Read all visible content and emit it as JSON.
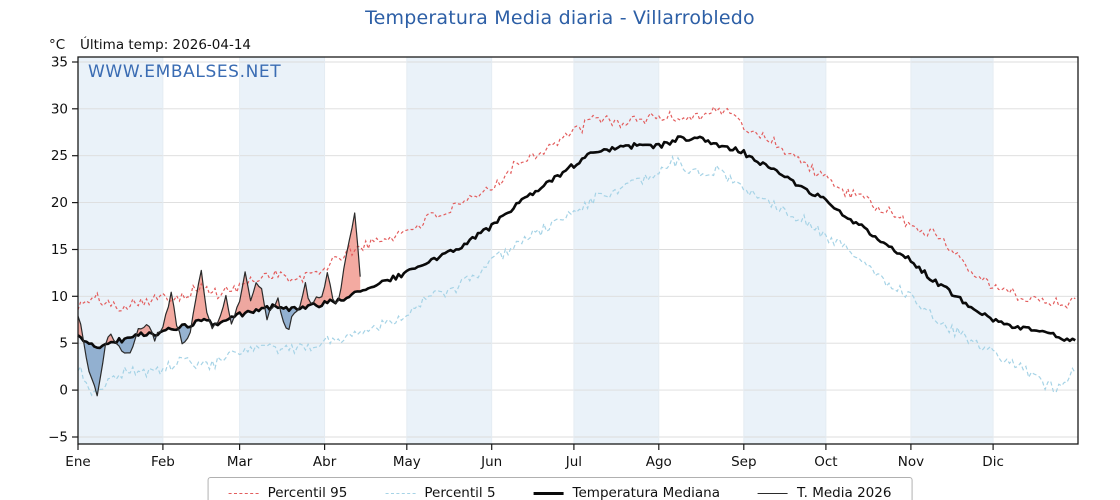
{
  "header": {
    "title": "Temperatura Media diaria - Villarrobledo",
    "units_label": "°C",
    "last_temp_label": "Última temp: 2026-04-14",
    "watermark": "WWW.EMBALSES.NET"
  },
  "colors": {
    "title": "#2d5fa6",
    "watermark": "#3a6cb3",
    "axis": "#1a1a1a",
    "grid": "#dcdcdc",
    "band": "#eaf2f9"
  },
  "chart_data": {
    "type": "line",
    "title": "Temperatura Media diaria - Villarrobledo",
    "xlabel": "",
    "ylabel": "°C",
    "x_tick_labels": [
      "Ene",
      "Feb",
      "Mar",
      "Abr",
      "May",
      "Jun",
      "Jul",
      "Ago",
      "Sep",
      "Oct",
      "Nov",
      "Dic"
    ],
    "month_days": [
      31,
      28,
      31,
      30,
      31,
      30,
      31,
      31,
      30,
      31,
      30,
      31
    ],
    "ylim": [
      -5.75,
      35.53
    ],
    "yticks": [
      -5,
      0,
      5,
      10,
      15,
      20,
      25,
      30,
      35
    ],
    "grid": true,
    "legend_position": "bottom",
    "band_color": "#eaf2f9",
    "series": [
      {
        "name": "Percentil 95",
        "color": "#e35d5d",
        "style": "dashed",
        "width": 1.2,
        "jitter": 0.6,
        "anchors": [
          [
            1,
            9.0
          ],
          [
            8,
            9.8
          ],
          [
            15,
            8.8
          ],
          [
            22,
            9.5
          ],
          [
            32,
            9.8
          ],
          [
            40,
            10.2
          ],
          [
            46,
            11.0
          ],
          [
            52,
            10.2
          ],
          [
            60,
            11.0
          ],
          [
            68,
            12.2
          ],
          [
            74,
            12.5
          ],
          [
            80,
            11.5
          ],
          [
            91,
            13.0
          ],
          [
            98,
            14.5
          ],
          [
            104,
            15.3
          ],
          [
            112,
            16.0
          ],
          [
            121,
            17.0
          ],
          [
            130,
            18.5
          ],
          [
            140,
            19.5
          ],
          [
            152,
            21.5
          ],
          [
            160,
            24.0
          ],
          [
            170,
            25.5
          ],
          [
            182,
            27.5
          ],
          [
            190,
            29.0
          ],
          [
            200,
            28.5
          ],
          [
            213,
            29.2
          ],
          [
            222,
            29.0
          ],
          [
            232,
            29.7
          ],
          [
            238,
            29.9
          ],
          [
            244,
            28.0
          ],
          [
            252,
            27.0
          ],
          [
            260,
            25.5
          ],
          [
            274,
            22.5
          ],
          [
            282,
            21.0
          ],
          [
            290,
            20.0
          ],
          [
            300,
            18.5
          ],
          [
            305,
            17.5
          ],
          [
            315,
            16.5
          ],
          [
            325,
            13.5
          ],
          [
            335,
            11.0
          ],
          [
            345,
            10.0
          ],
          [
            355,
            9.5
          ],
          [
            365,
            9.3
          ]
        ]
      },
      {
        "name": "Percentil 5",
        "color": "#a6d3e6",
        "style": "dashed",
        "width": 1.2,
        "jitter": 0.6,
        "anchors": [
          [
            1,
            2.5
          ],
          [
            6,
            -0.3
          ],
          [
            12,
            1.0
          ],
          [
            20,
            2.2
          ],
          [
            28,
            1.8
          ],
          [
            32,
            2.2
          ],
          [
            40,
            3.2
          ],
          [
            48,
            2.5
          ],
          [
            60,
            4.0
          ],
          [
            70,
            4.5
          ],
          [
            80,
            4.2
          ],
          [
            91,
            5.2
          ],
          [
            100,
            5.8
          ],
          [
            104,
            6.2
          ],
          [
            112,
            7.0
          ],
          [
            121,
            8.2
          ],
          [
            130,
            10.0
          ],
          [
            140,
            11.0
          ],
          [
            152,
            13.5
          ],
          [
            160,
            15.5
          ],
          [
            170,
            17.0
          ],
          [
            182,
            19.0
          ],
          [
            190,
            20.5
          ],
          [
            200,
            21.5
          ],
          [
            213,
            23.0
          ],
          [
            218,
            24.6
          ],
          [
            226,
            23.0
          ],
          [
            234,
            23.5
          ],
          [
            244,
            21.5
          ],
          [
            254,
            20.0
          ],
          [
            264,
            18.5
          ],
          [
            274,
            16.5
          ],
          [
            284,
            14.5
          ],
          [
            294,
            12.0
          ],
          [
            305,
            10.0
          ],
          [
            315,
            7.5
          ],
          [
            325,
            5.5
          ],
          [
            335,
            4.0
          ],
          [
            345,
            2.5
          ],
          [
            352,
            0.8
          ],
          [
            358,
            0.3
          ],
          [
            365,
            2.2
          ]
        ]
      },
      {
        "name": "Temperatura Mediana",
        "color": "#0a0a0a",
        "style": "solid",
        "width": 2.6,
        "jitter": 0.28,
        "anchors": [
          [
            1,
            5.6
          ],
          [
            8,
            4.6
          ],
          [
            15,
            5.2
          ],
          [
            22,
            5.8
          ],
          [
            32,
            6.2
          ],
          [
            40,
            6.8
          ],
          [
            46,
            7.4
          ],
          [
            52,
            7.0
          ],
          [
            60,
            8.0
          ],
          [
            68,
            8.6
          ],
          [
            74,
            9.0
          ],
          [
            80,
            8.6
          ],
          [
            91,
            9.2
          ],
          [
            98,
            9.8
          ],
          [
            104,
            10.6
          ],
          [
            112,
            11.5
          ],
          [
            121,
            12.5
          ],
          [
            130,
            13.8
          ],
          [
            140,
            15.2
          ],
          [
            152,
            17.5
          ],
          [
            160,
            19.5
          ],
          [
            170,
            21.5
          ],
          [
            182,
            24.0
          ],
          [
            190,
            25.5
          ],
          [
            200,
            25.8
          ],
          [
            207,
            26.3
          ],
          [
            213,
            26.0
          ],
          [
            220,
            26.8
          ],
          [
            228,
            26.9
          ],
          [
            235,
            26.2
          ],
          [
            244,
            25.3
          ],
          [
            252,
            24.0
          ],
          [
            260,
            22.5
          ],
          [
            274,
            20.2
          ],
          [
            284,
            18.0
          ],
          [
            294,
            16.0
          ],
          [
            305,
            13.8
          ],
          [
            312,
            12.0
          ],
          [
            320,
            10.3
          ],
          [
            328,
            8.8
          ],
          [
            335,
            7.6
          ],
          [
            345,
            6.6
          ],
          [
            355,
            6.0
          ],
          [
            365,
            5.2
          ]
        ]
      },
      {
        "name": "T. Media 2026",
        "color": "#2b2b2b",
        "style": "solid",
        "width": 1.2,
        "jitter": 0.35,
        "end_day": 104,
        "fill_above_color": "#ef8d82",
        "fill_below_color": "#749ac2",
        "fill_opacity": 0.75,
        "anchors": [
          [
            1,
            8.0
          ],
          [
            3,
            5.5
          ],
          [
            5,
            2.0
          ],
          [
            8,
            -0.5
          ],
          [
            10,
            3.0
          ],
          [
            12,
            6.0
          ],
          [
            14,
            5.5
          ],
          [
            17,
            4.0
          ],
          [
            20,
            3.8
          ],
          [
            23,
            6.5
          ],
          [
            26,
            7.0
          ],
          [
            29,
            5.5
          ],
          [
            32,
            6.8
          ],
          [
            35,
            10.3
          ],
          [
            37,
            7.0
          ],
          [
            39,
            4.8
          ],
          [
            42,
            6.0
          ],
          [
            44,
            9.5
          ],
          [
            46,
            13.0
          ],
          [
            48,
            8.0
          ],
          [
            50,
            6.5
          ],
          [
            53,
            8.0
          ],
          [
            55,
            9.8
          ],
          [
            57,
            7.2
          ],
          [
            60,
            9.2
          ],
          [
            62,
            12.4
          ],
          [
            64,
            9.5
          ],
          [
            66,
            11.8
          ],
          [
            68,
            10.5
          ],
          [
            70,
            7.8
          ],
          [
            72,
            9.0
          ],
          [
            74,
            9.8
          ],
          [
            76,
            7.0
          ],
          [
            78,
            6.8
          ],
          [
            80,
            8.2
          ],
          [
            82,
            9.0
          ],
          [
            84,
            11.2
          ],
          [
            86,
            9.0
          ],
          [
            88,
            9.6
          ],
          [
            90,
            9.8
          ],
          [
            92,
            12.8
          ],
          [
            94,
            10.0
          ],
          [
            96,
            9.2
          ],
          [
            98,
            13.2
          ],
          [
            100,
            15.8
          ],
          [
            102,
            19.0
          ],
          [
            103,
            16.0
          ],
          [
            104,
            12.0
          ]
        ]
      }
    ]
  },
  "legend": {
    "items": [
      {
        "label": "Percentil 95"
      },
      {
        "label": "Percentil 5"
      },
      {
        "label": "Temperatura Mediana"
      },
      {
        "label": "T. Media 2026"
      }
    ]
  }
}
